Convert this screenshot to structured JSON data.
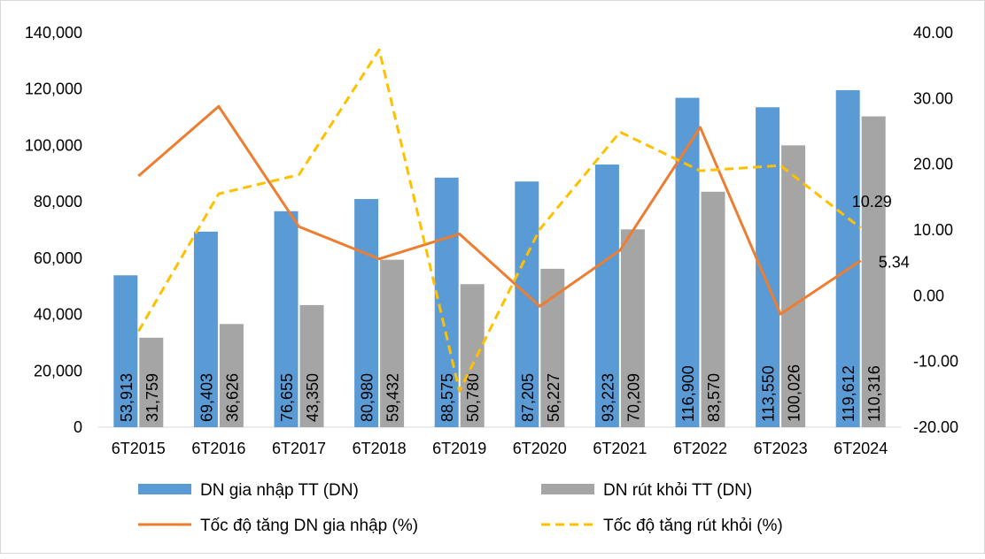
{
  "chart_data": {
    "type": "bar+line",
    "categories": [
      "6T2015",
      "6T2016",
      "6T2017",
      "6T2018",
      "6T2019",
      "6T2020",
      "6T2021",
      "6T2022",
      "6T2023",
      "6T2024"
    ],
    "series": [
      {
        "name": "DN gia nhập TT (DN)",
        "type": "bar",
        "axis": "left",
        "color": "#5b9bd5",
        "values": [
          53913,
          69403,
          76655,
          80980,
          88575,
          87205,
          93223,
          116900,
          113550,
          119612
        ],
        "labels": [
          "53,913",
          "69,403",
          "76,655",
          "80,980",
          "88,575",
          "87,205",
          "93,223",
          "116,900",
          "113,550",
          "119,612"
        ]
      },
      {
        "name": "DN rút khỏi TT (DN)",
        "type": "bar",
        "axis": "left",
        "color": "#a5a5a5",
        "values": [
          31759,
          36626,
          43350,
          59432,
          50780,
          56227,
          70209,
          83570,
          100026,
          110316
        ],
        "labels": [
          "31,759",
          "36,626",
          "43,350",
          "59,432",
          "50,780",
          "56,227",
          "70,209",
          "83,570",
          "100,026",
          "110,316"
        ]
      },
      {
        "name": "Tốc độ tăng DN gia nhập (%)",
        "type": "line",
        "axis": "right",
        "color": "#ed7d31",
        "dash": false,
        "values": [
          18.2,
          28.8,
          10.5,
          5.6,
          9.4,
          -1.6,
          6.9,
          25.6,
          -2.8,
          5.34
        ],
        "end_label": "5.34"
      },
      {
        "name": "Tốc độ tăng rút khỏi (%)",
        "type": "line",
        "axis": "right",
        "color": "#ffc000",
        "dash": true,
        "values": [
          -5.4,
          15.5,
          18.4,
          37.4,
          -14.5,
          10.1,
          24.9,
          19.0,
          19.8,
          10.29
        ],
        "end_label": "10.29"
      }
    ],
    "y_left": {
      "min": 0,
      "max": 140000,
      "ticks": [
        "0",
        "20,000",
        "40,000",
        "60,000",
        "80,000",
        "100,000",
        "120,000",
        "140,000"
      ]
    },
    "y_right": {
      "min": -20,
      "max": 40,
      "ticks": [
        "-20.00",
        "-10.00",
        "0.00",
        "10.00",
        "20.00",
        "30.00",
        "40.00"
      ]
    },
    "grid": false,
    "legend": "bottom",
    "title": "",
    "xlabel": "",
    "ylabel": ""
  }
}
